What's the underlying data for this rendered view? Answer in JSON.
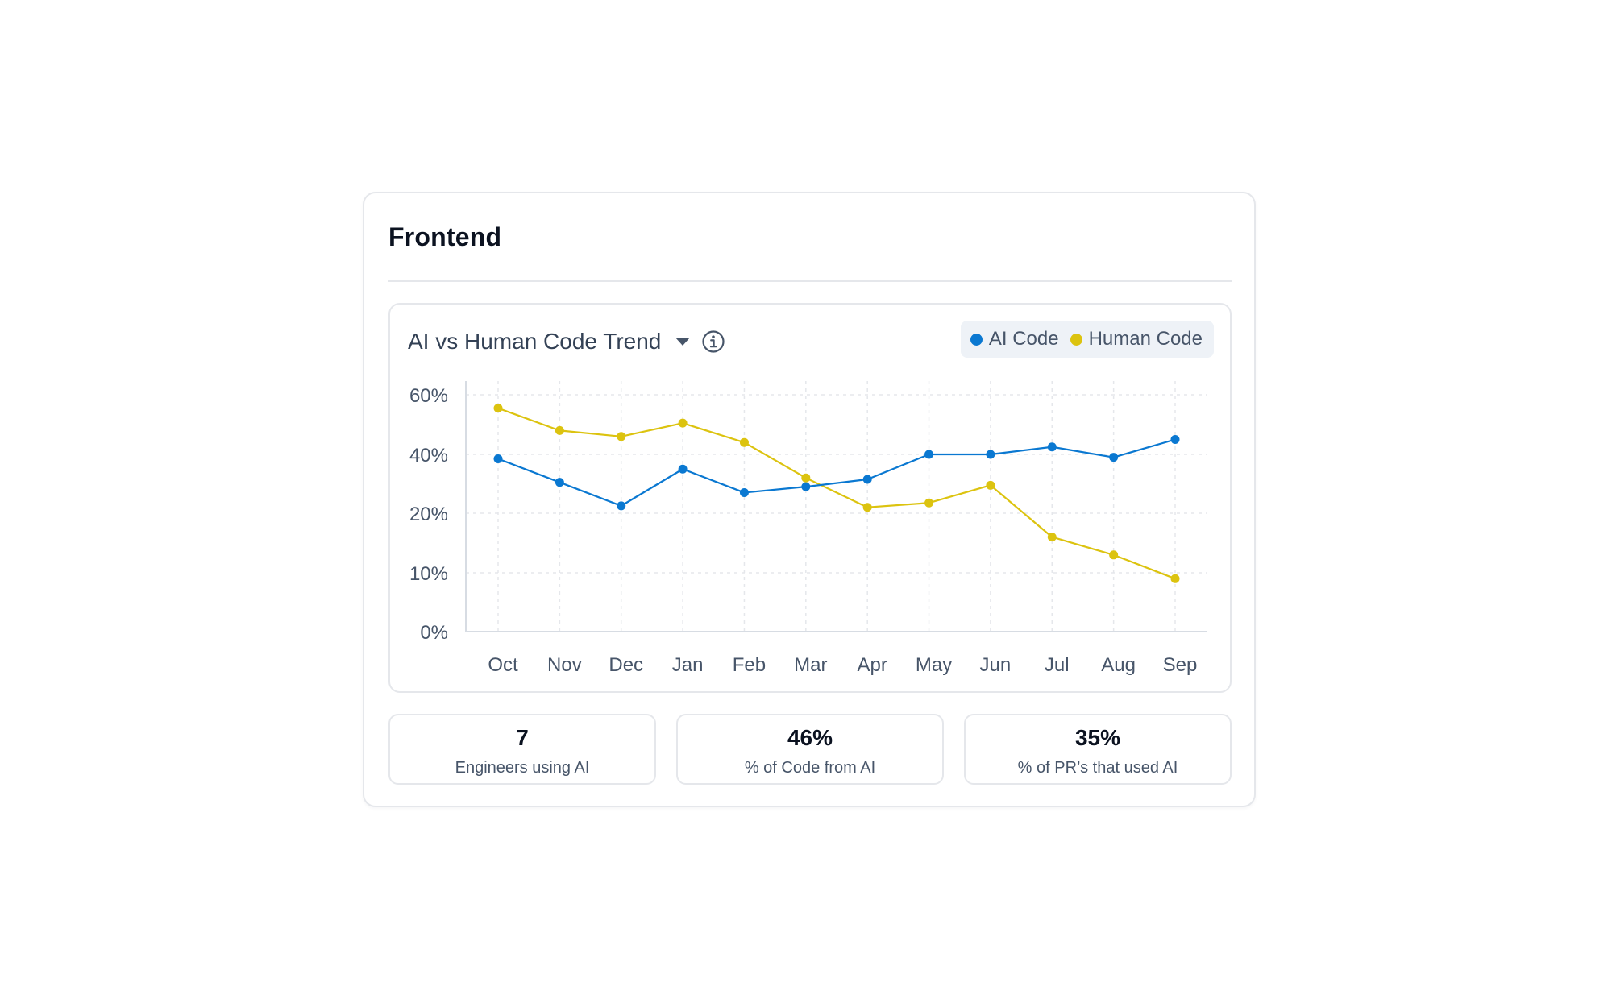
{
  "card": {
    "title": "Frontend"
  },
  "chart_panel": {
    "title": "AI vs Human Code Trend",
    "dropdown_icon": "caret-down-icon",
    "info_icon": "info-circle-icon"
  },
  "colors": {
    "ai": "#0a78d1",
    "human": "#dcc30f",
    "axis_text": "#475569",
    "grid": "#e5e7eb"
  },
  "chart_data": {
    "type": "line",
    "title": "AI vs Human Code Trend",
    "categories": [
      "Oct",
      "Nov",
      "Dec",
      "Jan",
      "Feb",
      "Mar",
      "Apr",
      "May",
      "Jun",
      "Jul",
      "Aug",
      "Sep"
    ],
    "y_ticks": [
      0,
      10,
      20,
      40,
      60
    ],
    "y_tick_labels": [
      "0%",
      "10%",
      "20%",
      "40%",
      "60%"
    ],
    "grid": true,
    "legend_position": "top-right",
    "series": [
      {
        "name": "AI Code",
        "color": "#0a78d1",
        "values": [
          38.5,
          30.5,
          22.5,
          35,
          27,
          29,
          31.5,
          40,
          40,
          42.5,
          39,
          45
        ]
      },
      {
        "name": "Human Code",
        "color": "#dcc30f",
        "values": [
          55.5,
          48,
          46,
          50.5,
          44,
          32,
          22,
          23.5,
          29.5,
          16,
          13,
          9
        ]
      }
    ]
  },
  "stats": [
    {
      "value": "7",
      "label": "Engineers using AI"
    },
    {
      "value": "46%",
      "label": "% of Code from AI"
    },
    {
      "value": "35%",
      "label": "% of PR’s that used AI"
    }
  ]
}
